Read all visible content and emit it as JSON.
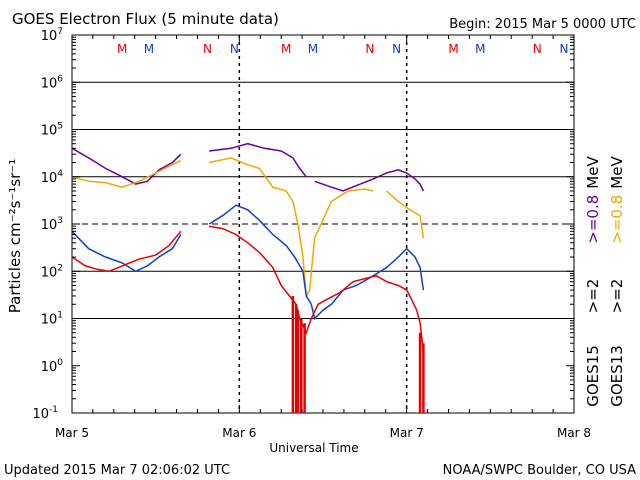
{
  "header": {
    "title": "GOES Electron Flux (5 minute data)",
    "begin": "Begin: 2015 Mar 5 0000 UTC"
  },
  "footer": {
    "updated": "Updated 2015 Mar  7 02:06:02 UTC",
    "credit": "NOAA/SWPC Boulder, CO USA"
  },
  "colors": {
    "purple": "#660099",
    "orange": "#f0a800",
    "blue": "#1040c8",
    "red": "#e80000",
    "axis": "#000000"
  },
  "chart_data": {
    "type": "line",
    "title": "GOES Electron Flux (5 minute data)",
    "xlabel": "Universal Time",
    "ylabel": "Particles cm⁻²s⁻¹sr⁻¹",
    "yscale": "log",
    "ylim": [
      0.1,
      10000000
    ],
    "xlim": [
      0,
      3
    ],
    "x_ticks": [
      {
        "x": 0,
        "label": "Mar 5"
      },
      {
        "x": 1,
        "label": "Mar 6"
      },
      {
        "x": 2,
        "label": "Mar 7"
      },
      {
        "x": 3,
        "label": "Mar 8"
      }
    ],
    "y_ticks": [
      {
        "exp": 7,
        "base": "10",
        "sup": "7"
      },
      {
        "exp": 6,
        "base": "10",
        "sup": "6"
      },
      {
        "exp": 5,
        "base": "10",
        "sup": "5"
      },
      {
        "exp": 4,
        "base": "10",
        "sup": "4"
      },
      {
        "exp": 3,
        "base": "10",
        "sup": "3"
      },
      {
        "exp": 2,
        "base": "10",
        "sup": "2"
      },
      {
        "exp": 1,
        "base": "10",
        "sup": "1"
      },
      {
        "exp": 0,
        "base": "10",
        "sup": "0"
      },
      {
        "exp": -1,
        "base": "10",
        "sup": "-1"
      }
    ],
    "grid_lines": [
      1,
      2,
      4,
      5,
      6
    ],
    "threshold_line": 3,
    "markers": [
      {
        "x": 0.3,
        "label": "M",
        "color": "#e80000"
      },
      {
        "x": 0.46,
        "label": "M",
        "color": "#1040c8"
      },
      {
        "x": 0.81,
        "label": "N",
        "color": "#e80000"
      },
      {
        "x": 0.97,
        "label": "N",
        "color": "#1040c8"
      },
      {
        "x": 1.28,
        "label": "M",
        "color": "#e80000"
      },
      {
        "x": 1.44,
        "label": "M",
        "color": "#1040c8"
      },
      {
        "x": 1.78,
        "label": "N",
        "color": "#e80000"
      },
      {
        "x": 1.94,
        "label": "N",
        "color": "#1040c8"
      },
      {
        "x": 2.28,
        "label": "M",
        "color": "#e80000"
      },
      {
        "x": 2.44,
        "label": "M",
        "color": "#1040c8"
      },
      {
        "x": 2.78,
        "label": "N",
        "color": "#e80000"
      },
      {
        "x": 2.94,
        "label": "N",
        "color": "#1040c8"
      }
    ],
    "noon_markers": [
      0.0,
      1.0,
      2.0
    ],
    "legend": [
      {
        "label": ">=0.8 MeV",
        "color": "#660099",
        "sat": "GOES15"
      },
      {
        "label": ">=0.8 MeV",
        "color": "#f0a800",
        "sat": "GOES13"
      },
      {
        "label": ">=2",
        "color": "#1040c8",
        "sat": "GOES15"
      },
      {
        "label": ">=2",
        "color": "#e80000",
        "sat": "GOES13"
      }
    ],
    "right_labels": {
      "mev_purple": ">=0.8",
      "mev_orange": ">=0.8",
      "mev_unit_1": "MeV",
      "mev_unit_2": "MeV",
      "ge2_blue": ">=2",
      "ge2_red": ">=2",
      "goes15": "GOES15",
      "goes13": "GOES13"
    },
    "series": [
      {
        "name": "GOES15 >=0.8 MeV",
        "color": "#660099",
        "segments": [
          [
            [
              0.0,
              40000
            ],
            [
              0.1,
              25000
            ],
            [
              0.2,
              15000
            ],
            [
              0.3,
              10000
            ],
            [
              0.38,
              7000
            ],
            [
              0.45,
              8000
            ],
            [
              0.52,
              14000
            ],
            [
              0.6,
              20000
            ],
            [
              0.65,
              30000
            ]
          ],
          [
            [
              0.82,
              35000
            ],
            [
              0.95,
              40000
            ],
            [
              1.05,
              50000
            ],
            [
              1.15,
              40000
            ],
            [
              1.25,
              35000
            ],
            [
              1.32,
              25000
            ],
            [
              1.36,
              15000
            ],
            [
              1.4,
              10000
            ]
          ],
          [
            [
              1.45,
              8000
            ],
            [
              1.55,
              6000
            ],
            [
              1.62,
              5000
            ],
            [
              1.7,
              6500
            ],
            [
              1.8,
              9000
            ],
            [
              1.88,
              12000
            ],
            [
              1.95,
              14000
            ],
            [
              2.0,
              12000
            ],
            [
              2.05,
              9000
            ],
            [
              2.08,
              7000
            ],
            [
              2.1,
              5000
            ]
          ]
        ]
      },
      {
        "name": "GOES13 >=0.8 MeV",
        "color": "#f0a800",
        "segments": [
          [
            [
              0.0,
              10000
            ],
            [
              0.1,
              8000
            ],
            [
              0.2,
              7500
            ],
            [
              0.3,
              6000
            ],
            [
              0.4,
              8000
            ],
            [
              0.5,
              12000
            ],
            [
              0.6,
              18000
            ],
            [
              0.65,
              22000
            ]
          ],
          [
            [
              0.82,
              20000
            ],
            [
              0.95,
              25000
            ],
            [
              1.05,
              18000
            ],
            [
              1.12,
              15000
            ],
            [
              1.2,
              6000
            ],
            [
              1.28,
              5000
            ],
            [
              1.32,
              3000
            ],
            [
              1.35,
              1000
            ],
            [
              1.38,
              200
            ],
            [
              1.4,
              30
            ],
            [
              1.42,
              40
            ],
            [
              1.45,
              500
            ],
            [
              1.55,
              3000
            ],
            [
              1.65,
              5000
            ],
            [
              1.75,
              5500
            ],
            [
              1.8,
              5000
            ]
          ],
          [
            [
              1.88,
              5000
            ],
            [
              1.95,
              3000
            ],
            [
              2.02,
              2000
            ],
            [
              2.08,
              1500
            ],
            [
              2.1,
              500
            ]
          ]
        ]
      },
      {
        "name": "GOES15 >=2 MeV",
        "color": "#1040c8",
        "segments": [
          [
            [
              0.0,
              700
            ],
            [
              0.1,
              300
            ],
            [
              0.2,
              200
            ],
            [
              0.3,
              150
            ],
            [
              0.38,
              100
            ],
            [
              0.45,
              130
            ],
            [
              0.52,
              200
            ],
            [
              0.6,
              300
            ],
            [
              0.65,
              600
            ]
          ],
          [
            [
              0.82,
              1000
            ],
            [
              0.9,
              1500
            ],
            [
              0.98,
              2500
            ],
            [
              1.05,
              2000
            ],
            [
              1.12,
              1200
            ],
            [
              1.2,
              600
            ],
            [
              1.28,
              350
            ],
            [
              1.33,
              200
            ],
            [
              1.38,
              100
            ],
            [
              1.4,
              30
            ],
            [
              1.43,
              20
            ],
            [
              1.45,
              10
            ],
            [
              1.5,
              15
            ],
            [
              1.55,
              20
            ],
            [
              1.62,
              40
            ],
            [
              1.7,
              50
            ],
            [
              1.8,
              80
            ],
            [
              1.88,
              120
            ],
            [
              1.95,
              200
            ],
            [
              2.0,
              300
            ],
            [
              2.05,
              200
            ],
            [
              2.08,
              120
            ],
            [
              2.1,
              40
            ]
          ]
        ]
      },
      {
        "name": "GOES13 >=2 MeV",
        "color": "#e80000",
        "segments": [
          [
            [
              0.0,
              200
            ],
            [
              0.08,
              130
            ],
            [
              0.15,
              110
            ],
            [
              0.22,
              100
            ],
            [
              0.3,
              130
            ],
            [
              0.4,
              180
            ],
            [
              0.5,
              220
            ],
            [
              0.58,
              350
            ],
            [
              0.65,
              700
            ]
          ],
          [
            [
              0.82,
              900
            ],
            [
              0.9,
              800
            ],
            [
              0.98,
              600
            ],
            [
              1.05,
              400
            ],
            [
              1.12,
              250
            ],
            [
              1.2,
              120
            ],
            [
              1.25,
              50
            ],
            [
              1.3,
              30
            ],
            [
              1.34,
              20
            ],
            [
              1.36,
              10
            ],
            [
              1.4,
              5
            ],
            [
              1.43,
              10
            ],
            [
              1.47,
              20
            ],
            [
              1.52,
              25
            ],
            [
              1.6,
              35
            ],
            [
              1.68,
              60
            ],
            [
              1.75,
              70
            ],
            [
              1.82,
              80
            ],
            [
              1.88,
              60
            ],
            [
              1.95,
              50
            ],
            [
              2.0,
              40
            ],
            [
              2.03,
              25
            ],
            [
              2.06,
              15
            ],
            [
              2.08,
              8
            ],
            [
              2.1,
              2
            ]
          ]
        ]
      }
    ],
    "dropouts": [
      {
        "x": 1.32,
        "from": 0.1,
        "to": 30,
        "color": "#e80000"
      },
      {
        "x": 1.34,
        "from": 0.1,
        "to": 20,
        "color": "#e80000"
      },
      {
        "x": 1.35,
        "from": 0.1,
        "to": 15,
        "color": "#e80000"
      },
      {
        "x": 1.37,
        "from": 0.1,
        "to": 10,
        "color": "#e80000"
      },
      {
        "x": 1.39,
        "from": 0.1,
        "to": 8,
        "color": "#e80000"
      },
      {
        "x": 2.08,
        "from": 0.1,
        "to": 5,
        "color": "#e80000"
      },
      {
        "x": 2.1,
        "from": 0.1,
        "to": 3,
        "color": "#e80000"
      }
    ]
  }
}
